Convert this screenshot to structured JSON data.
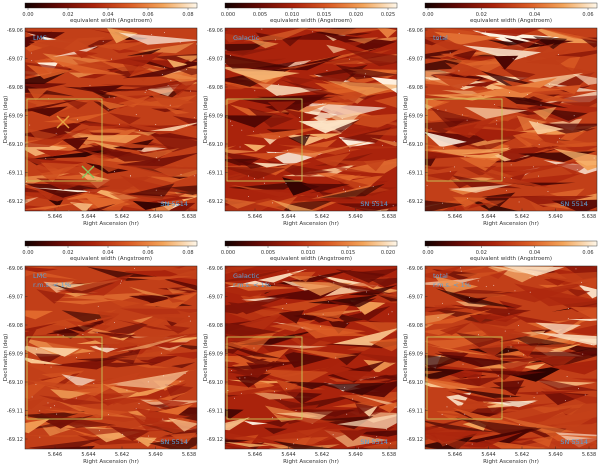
{
  "figure": {
    "colorbar_label": "equivalent width (Angstroem)",
    "xlabel": "Right Ascension (hr)",
    "ylabel": "Declination (deg)",
    "x_ticks": [
      "5.646",
      "5.644",
      "5.642",
      "5.640",
      "5.638"
    ],
    "y_ticks": [
      "-69.06",
      "-69.07",
      "-69.08",
      "-69.09",
      "-69.10",
      "-69.11",
      "-69.12"
    ],
    "sn_label": "SN 5514",
    "colors": {
      "box": "#c8c85a",
      "label": "#5aa0d8",
      "marker_orange": "#e8a040",
      "marker_green": "#8ac05a"
    }
  },
  "chart_data": [
    {
      "type": "heatmap",
      "title": "",
      "cb_ticks": [
        "0.00",
        "0.02",
        "0.04",
        "0.06",
        "0.08"
      ],
      "labels": [
        "LMC"
      ],
      "markers": true,
      "xlabel": "Right Ascension (hr)",
      "ylabel": "Declination (deg)",
      "colorbar": "top"
    },
    {
      "type": "heatmap",
      "title": "",
      "cb_ticks": [
        "0.000",
        "0.005",
        "0.010",
        "0.015",
        "0.020",
        "0.025"
      ],
      "labels": [
        "Galactic"
      ],
      "markers": false,
      "xlabel": "Right Ascension (hr)",
      "ylabel": "Declination (deg)",
      "colorbar": "top"
    },
    {
      "type": "heatmap",
      "title": "",
      "cb_ticks": [
        "0.00",
        "0.02",
        "0.04",
        "0.06"
      ],
      "labels": [
        "total"
      ],
      "markers": false,
      "xlabel": "Right Ascension (hr)",
      "ylabel": "Declination (deg)",
      "colorbar": "top"
    },
    {
      "type": "heatmap",
      "title": "",
      "cb_ticks": [
        "0.00",
        "0.02",
        "0.04",
        "0.06",
        "0.08"
      ],
      "labels": [
        "LMC",
        "r.m.s. < 1%"
      ],
      "markers": false,
      "xlabel": "Right Ascension (hr)",
      "ylabel": "Declination (deg)",
      "colorbar": "top"
    },
    {
      "type": "heatmap",
      "title": "",
      "cb_ticks": [
        "0.000",
        "0.005",
        "0.010",
        "0.015",
        "0.020"
      ],
      "labels": [
        "Galactic",
        "r.m.s. < 1%"
      ],
      "markers": false,
      "xlabel": "Right Ascension (hr)",
      "ylabel": "Declination (deg)",
      "colorbar": "top"
    },
    {
      "type": "heatmap",
      "title": "",
      "cb_ticks": [
        "0.00",
        "0.02",
        "0.04",
        "0.06"
      ],
      "labels": [
        "total",
        "r.m.s. < 1%"
      ],
      "markers": false,
      "xlabel": "Right Ascension (hr)",
      "ylabel": "Declination (deg)",
      "colorbar": "top"
    }
  ]
}
